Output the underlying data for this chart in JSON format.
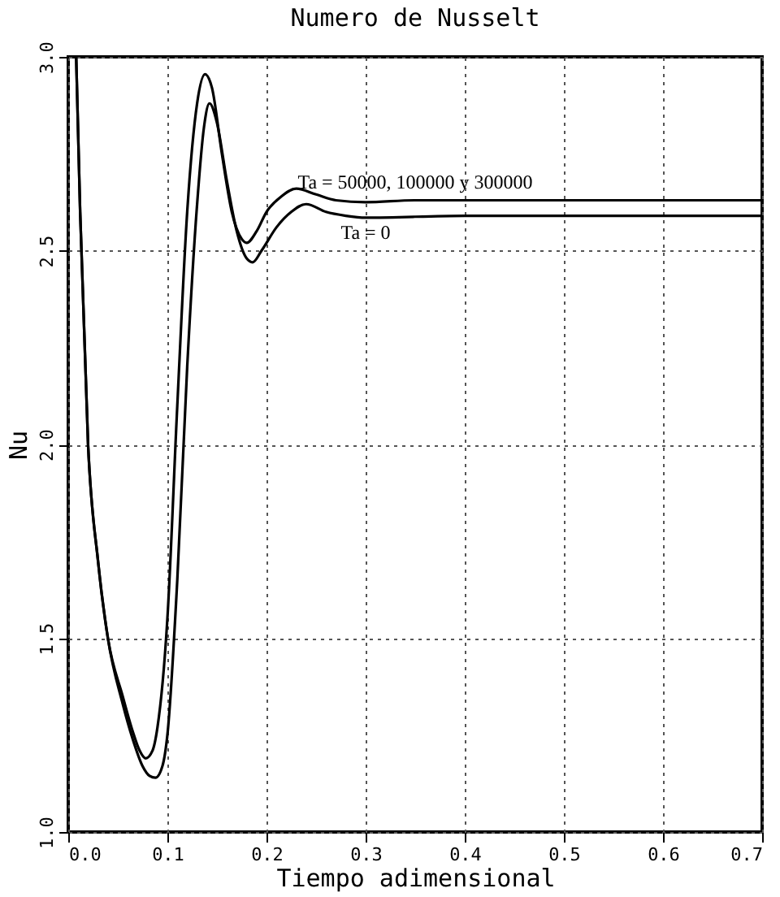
{
  "chart_data": {
    "type": "line",
    "title": "Numero de Nusselt",
    "xlabel": "Tiempo adimensional",
    "ylabel": "Nu",
    "xlim": [
      0,
      0.7
    ],
    "ylim": [
      1.0,
      3.0
    ],
    "xticks": [
      {
        "value": 0,
        "label": "0.0"
      },
      {
        "value": 0.1,
        "label": "0.1"
      },
      {
        "value": 0.2,
        "label": "0.2"
      },
      {
        "value": 0.3,
        "label": "0.3"
      },
      {
        "value": 0.4,
        "label": "0.4"
      },
      {
        "value": 0.5,
        "label": "0.5"
      },
      {
        "value": 0.6,
        "label": "0.6"
      },
      {
        "value": 0.7,
        "label": "0.7"
      }
    ],
    "yticks": [
      {
        "value": 1,
        "label": "1.0"
      },
      {
        "value": 1.5,
        "label": "1.5"
      },
      {
        "value": 2,
        "label": "2.0"
      },
      {
        "value": 2.5,
        "label": "2.5"
      },
      {
        "value": 3,
        "label": "3.0"
      }
    ],
    "grid": true,
    "series": [
      {
        "name": "Ta = 50000, 100000 y 300000",
        "color": "#000000",
        "x": [
          0.008,
          0.012,
          0.02,
          0.03,
          0.04,
          0.055,
          0.065,
          0.072,
          0.078,
          0.085,
          0.09,
          0.1,
          0.11,
          0.12,
          0.13,
          0.138,
          0.145,
          0.155,
          0.165,
          0.175,
          0.18,
          0.19,
          0.2,
          0.215,
          0.23,
          0.25,
          0.27,
          0.3,
          0.35,
          0.4,
          0.5,
          0.6,
          0.7
        ],
        "values": [
          3.0,
          2.6,
          2.0,
          1.7,
          1.5,
          1.35,
          1.26,
          1.21,
          1.19,
          1.21,
          1.27,
          1.55,
          2.1,
          2.6,
          2.88,
          2.955,
          2.92,
          2.75,
          2.6,
          2.53,
          2.52,
          2.55,
          2.6,
          2.64,
          2.66,
          2.645,
          2.63,
          2.625,
          2.63,
          2.63,
          2.63,
          2.63,
          2.63
        ]
      },
      {
        "name": "Ta = 0",
        "color": "#000000",
        "x": [
          0.008,
          0.012,
          0.02,
          0.03,
          0.04,
          0.055,
          0.065,
          0.075,
          0.082,
          0.088,
          0.095,
          0.1,
          0.11,
          0.12,
          0.13,
          0.137,
          0.1425,
          0.15,
          0.16,
          0.17,
          0.18,
          0.186,
          0.195,
          0.21,
          0.225,
          0.24,
          0.26,
          0.28,
          0.3,
          0.4,
          0.5,
          0.6,
          0.7
        ],
        "values": [
          3.0,
          2.6,
          2.0,
          1.7,
          1.5,
          1.33,
          1.24,
          1.17,
          1.145,
          1.14,
          1.17,
          1.25,
          1.65,
          2.2,
          2.62,
          2.82,
          2.88,
          2.83,
          2.68,
          2.55,
          2.48,
          2.47,
          2.5,
          2.56,
          2.6,
          2.62,
          2.6,
          2.59,
          2.585,
          2.59,
          2.59,
          2.59,
          2.59
        ]
      }
    ]
  }
}
